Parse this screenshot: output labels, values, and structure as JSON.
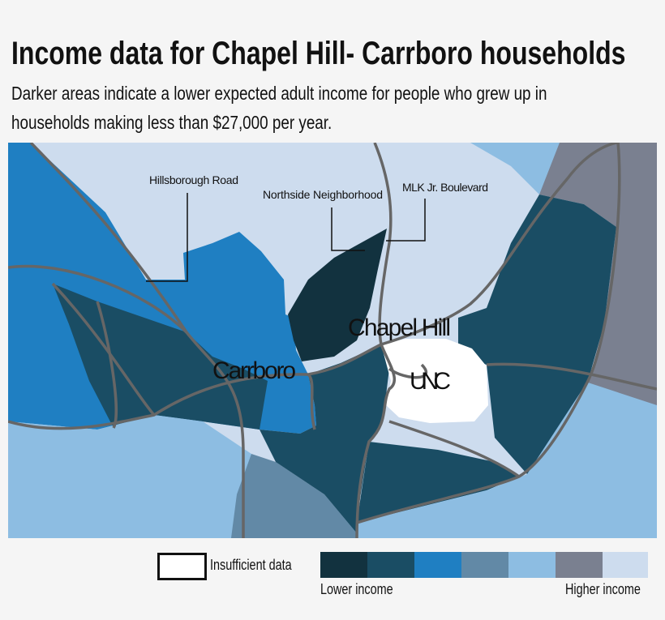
{
  "header": {
    "title": "Income data for Chapel Hill- Carrboro households",
    "subtitle_line1": "Darker areas indicate a lower expected adult income for people who grew up in",
    "subtitle_line2": "households making less than $27,000 per year."
  },
  "map": {
    "labels": {
      "carrboro": "Carrboro",
      "chapel_hill": "Chapel Hill",
      "unc": "UNC"
    },
    "annotations": {
      "hillsborough": "Hillsborough Road",
      "northside": "Northside Neighborhood",
      "mlk": "MLK Jr. Boulevard"
    },
    "road_color": "#666666"
  },
  "legend": {
    "insufficient": "Insufficient data",
    "insufficient_color": "#ffffff",
    "scale_colors": [
      "#12323f",
      "#1a4d64",
      "#1f7fc2",
      "#6289a6",
      "#8dbde2",
      "#7a8090",
      "#cddcee"
    ],
    "low_label": "Lower income",
    "high_label": "Higher income"
  }
}
